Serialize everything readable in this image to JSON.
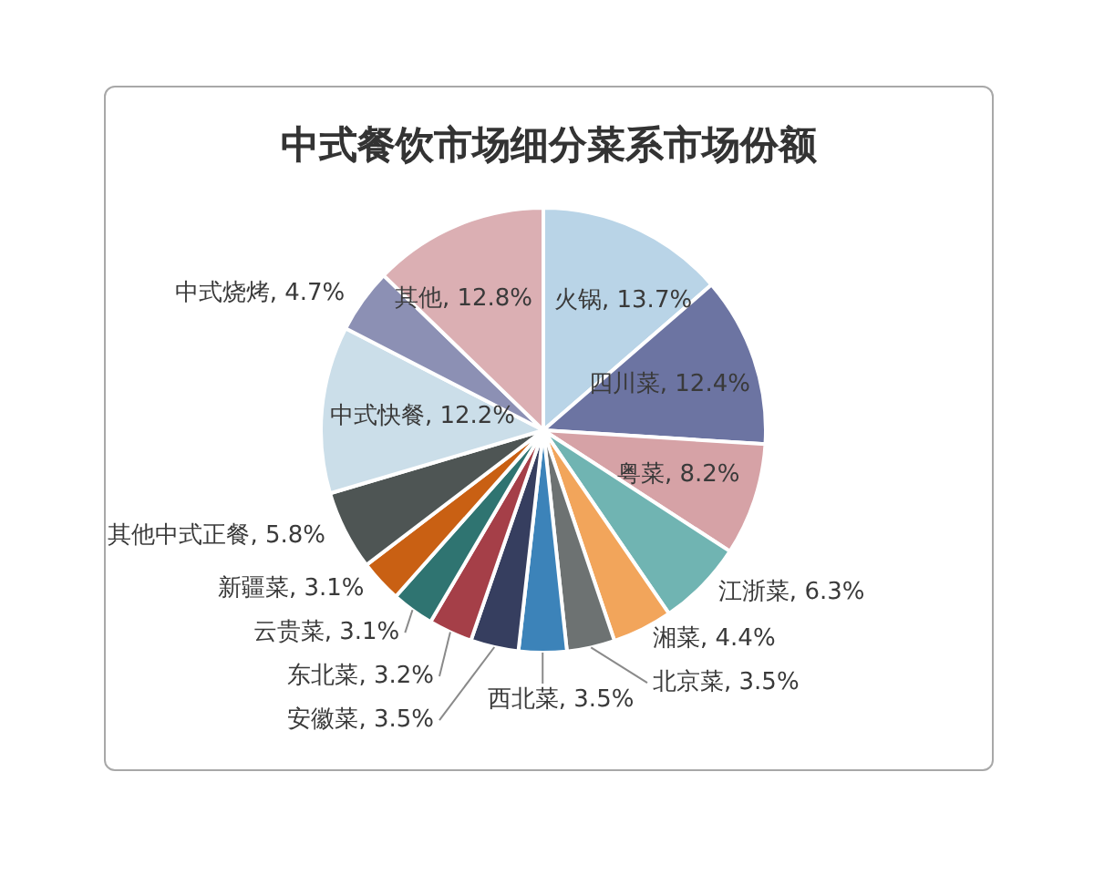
{
  "chart_data": {
    "type": "pie",
    "title": "中式餐饮市场细分菜系市场份额",
    "categories": [
      "火锅",
      "四川菜",
      "粤菜",
      "江浙菜",
      "湘菜",
      "北京菜",
      "西北菜",
      "安徽菜",
      "东北菜",
      "云贵菜",
      "新疆菜",
      "其他中式正餐",
      "中式快餐",
      "中式烧烤",
      "其他"
    ],
    "values": [
      13.7,
      12.4,
      8.2,
      6.3,
      4.4,
      3.5,
      3.5,
      3.5,
      3.2,
      3.1,
      3.1,
      5.8,
      12.2,
      4.7,
      12.8
    ],
    "colors": [
      "#b9d4e7",
      "#6c74a2",
      "#d6a2a6",
      "#70b4b2",
      "#f2a55b",
      "#6d7272",
      "#3c83b9",
      "#363e5f",
      "#a53f48",
      "#2f7471",
      "#c96013",
      "#4e5554",
      "#cbdee9",
      "#8c90b4",
      "#dbafb3"
    ],
    "value_labels": [
      "13.7%",
      "12.4%",
      "8.2%",
      "6.3%",
      "4.4%",
      "3.5%",
      "3.5%",
      "3.5%",
      "3.2%",
      "3.1%",
      "3.1%",
      "5.8%",
      "12.2%",
      "4.7%",
      "12.8%"
    ]
  }
}
